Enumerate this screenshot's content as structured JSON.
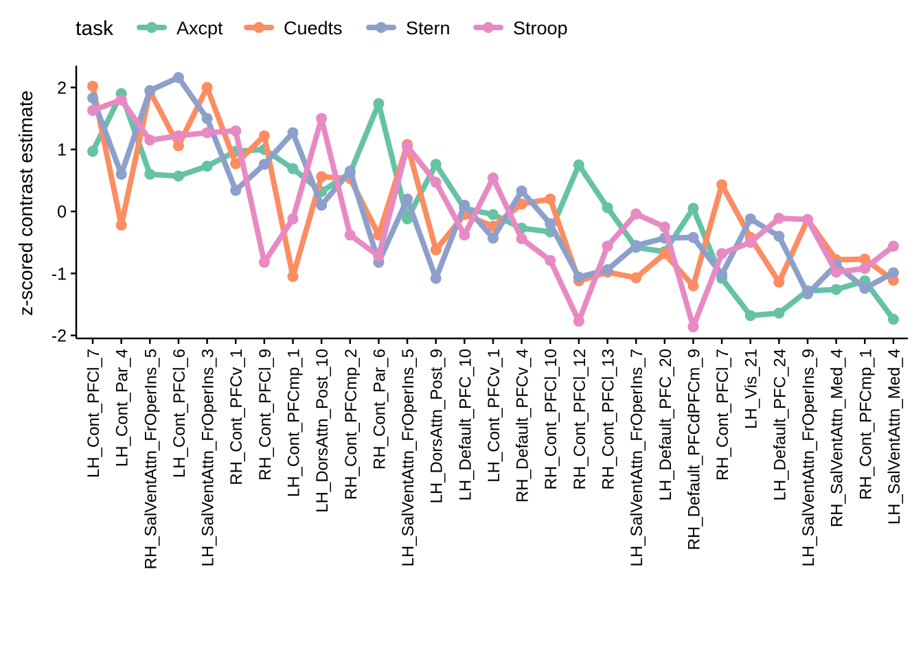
{
  "chart_data": {
    "type": "line",
    "title": "",
    "xlabel": "",
    "ylabel": "z-scored contrast estimate",
    "ylim": [
      -2.05,
      2.35
    ],
    "yticks": [
      -2,
      -1,
      0,
      1,
      2
    ],
    "ytick_labels": [
      "-2",
      "-1",
      "0",
      "1",
      "2"
    ],
    "grid": false,
    "legend": {
      "title": "task",
      "placement": "top-left"
    },
    "categories": [
      "LH_Cont_PFCl_7",
      "LH_Cont_Par_4",
      "RH_SalVentAttn_FrOperIns_5",
      "LH_Cont_PFCl_6",
      "LH_SalVentAttn_FrOperIns_3",
      "RH_Cont_PFCv_1",
      "RH_Cont_PFCl_9",
      "LH_Cont_PFCmp_1",
      "LH_DorsAttn_Post_10",
      "RH_Cont_PFCmp_2",
      "RH_Cont_Par_6",
      "LH_SalVentAttn_FrOperIns_5",
      "LH_DorsAttn_Post_9",
      "LH_Default_PFC_10",
      "LH_Cont_PFCv_1",
      "RH_Default_PFCv_4",
      "RH_Cont_PFCl_10",
      "RH_Cont_PFCl_12",
      "RH_Cont_PFCl_13",
      "LH_SalVentAttn_FrOperIns_7",
      "LH_Default_PFC_20",
      "RH_Default_PFCdPFCm_9",
      "RH_Cont_PFCl_7",
      "LH_Vis_21",
      "LH_Default_PFC_24",
      "LH_SalVentAttn_FrOperIns_9",
      "RH_SalVentAttn_Med_4",
      "RH_Cont_PFCmp_1",
      "LH_SalVentAttn_Med_4"
    ],
    "series": [
      {
        "name": "Axcpt",
        "color": "#66c2a5",
        "values": [
          0.97,
          1.9,
          0.6,
          0.57,
          0.73,
          0.97,
          1.0,
          0.69,
          0.32,
          0.62,
          1.74,
          -0.12,
          0.76,
          0.05,
          -0.05,
          -0.27,
          -0.33,
          0.75,
          0.06,
          -0.58,
          -0.65,
          0.05,
          -1.08,
          -1.68,
          -1.64,
          -1.28,
          -1.26,
          -1.12,
          -1.74
        ]
      },
      {
        "name": "Cuedts",
        "color": "#fc8d62",
        "values": [
          2.02,
          -0.22,
          1.94,
          1.06,
          2.0,
          0.77,
          1.22,
          -1.05,
          0.56,
          0.53,
          -0.38,
          1.08,
          -0.62,
          -0.05,
          -0.24,
          0.12,
          0.2,
          -1.12,
          -0.98,
          -1.07,
          -0.68,
          -1.2,
          0.43,
          -0.42,
          -1.14,
          -0.13,
          -0.78,
          -0.77,
          -1.11
        ]
      },
      {
        "name": "Stern",
        "color": "#8da0cb",
        "values": [
          1.83,
          0.6,
          1.95,
          2.16,
          1.5,
          0.34,
          0.76,
          1.27,
          0.1,
          0.65,
          -0.82,
          0.2,
          -1.08,
          0.1,
          -0.43,
          0.33,
          -0.2,
          -1.06,
          -0.94,
          -0.55,
          -0.43,
          -0.42,
          -1.02,
          -0.12,
          -0.4,
          -1.33,
          -0.86,
          -1.24,
          -0.99
        ]
      },
      {
        "name": "Stroop",
        "color": "#e78ac3",
        "values": [
          1.63,
          1.8,
          1.15,
          1.22,
          1.27,
          1.3,
          -0.82,
          -0.12,
          1.5,
          -0.38,
          -0.72,
          1.05,
          0.47,
          -0.38,
          0.54,
          -0.44,
          -0.79,
          -1.77,
          -0.56,
          -0.04,
          -0.25,
          -1.86,
          -0.68,
          -0.5,
          -0.11,
          -0.13,
          -0.98,
          -0.92,
          -0.56
        ]
      }
    ]
  }
}
